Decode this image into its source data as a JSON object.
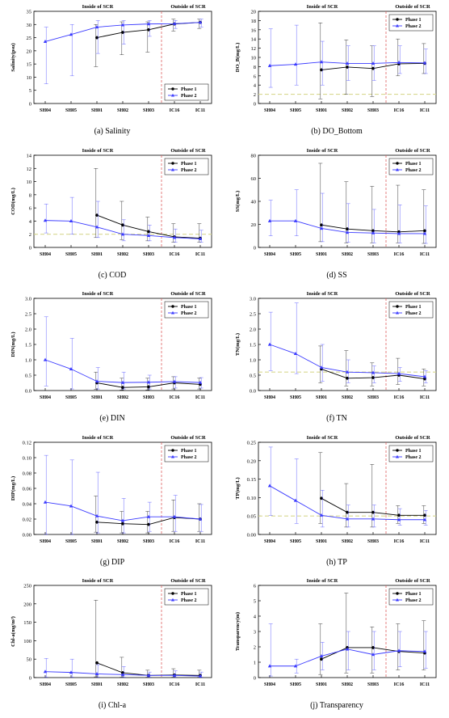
{
  "figure": {
    "stations": [
      "SH04",
      "SH05",
      "SH01",
      "SH02",
      "SH03",
      "IC16",
      "IC11"
    ],
    "region_labels": {
      "inside": "Inside of SCR",
      "outside": "Outside of SCR"
    },
    "series_names": [
      "Phase 1",
      "Phase 2"
    ],
    "colors": {
      "phase1": "#000000",
      "phase2": "#3a3aff",
      "boundary": "#e06060",
      "standard": "#d8d890"
    }
  },
  "chart_data": [
    {
      "id": "a",
      "type": "line",
      "caption": "(a)  Salinity",
      "ylabel": "Salinity(psu)",
      "ylim": [
        0,
        35
      ],
      "yticks": [
        "0",
        "5",
        "10",
        "15",
        "20",
        "25",
        "30",
        "35"
      ],
      "standard": null,
      "series": [
        {
          "name": "Phase 1",
          "values": [
            null,
            null,
            25.0,
            27.0,
            28.0,
            30.2,
            30.8
          ],
          "err_low": [
            null,
            null,
            14.0,
            18.5,
            19.5,
            27.5,
            28.5
          ],
          "err_high": [
            null,
            null,
            30.0,
            31.0,
            31.0,
            32.0,
            32.0
          ]
        },
        {
          "name": "Phase 2",
          "values": [
            23.5,
            26.2,
            29.0,
            29.8,
            30.2,
            30.3,
            30.8
          ],
          "err_low": [
            7.5,
            10.5,
            19.0,
            22.5,
            25.5,
            28.5,
            29.0
          ],
          "err_high": [
            29.0,
            30.0,
            31.5,
            31.5,
            31.5,
            31.5,
            32.0
          ]
        }
      ],
      "legend": "bottom-right"
    },
    {
      "id": "b",
      "type": "line",
      "caption": "(b)  DO_Bottom",
      "ylabel": "DO_B(mg/L)",
      "ylim": [
        0,
        20
      ],
      "yticks": [
        "0",
        "2",
        "4",
        "6",
        "8",
        "10",
        "12",
        "14",
        "16",
        "18",
        "20"
      ],
      "standard": 2,
      "series": [
        {
          "name": "Phase 1",
          "values": [
            null,
            null,
            7.3,
            7.9,
            7.6,
            8.6,
            8.7
          ],
          "err_low": [
            null,
            null,
            1.0,
            2.0,
            1.5,
            6.0,
            6.5
          ],
          "err_high": [
            null,
            null,
            17.5,
            13.8,
            12.5,
            14.0,
            13.0
          ]
        },
        {
          "name": "Phase 2",
          "values": [
            8.2,
            8.5,
            9.0,
            8.7,
            8.7,
            8.9,
            8.8
          ],
          "err_low": [
            3.5,
            4.0,
            4.0,
            5.0,
            5.0,
            6.5,
            6.5
          ],
          "err_high": [
            16.2,
            17.0,
            13.5,
            12.5,
            12.5,
            12.5,
            11.8
          ]
        }
      ],
      "legend": "top-right"
    },
    {
      "id": "c",
      "type": "line",
      "caption": "(c)  COD",
      "ylabel": "COD(mg/L)",
      "ylim": [
        0,
        14
      ],
      "yticks": [
        "0",
        "2",
        "4",
        "6",
        "8",
        "10",
        "12",
        "14"
      ],
      "standard": 2,
      "series": [
        {
          "name": "Phase 1",
          "values": [
            null,
            null,
            4.9,
            3.4,
            2.4,
            1.6,
            1.4
          ],
          "err_low": [
            null,
            null,
            1.5,
            1.2,
            1.0,
            0.8,
            0.8
          ],
          "err_high": [
            null,
            null,
            12.0,
            7.0,
            4.6,
            3.6,
            3.6
          ]
        },
        {
          "name": "Phase 2",
          "values": [
            4.1,
            4.0,
            3.1,
            2.0,
            1.8,
            1.5,
            1.3
          ],
          "err_low": [
            2.2,
            2.0,
            1.5,
            1.0,
            1.0,
            0.8,
            0.8
          ],
          "err_high": [
            6.6,
            7.6,
            7.0,
            4.2,
            3.4,
            2.8,
            2.6
          ]
        }
      ],
      "legend": "top-right"
    },
    {
      "id": "d",
      "type": "line",
      "caption": "(d)  SS",
      "ylabel": "SS(mg/L)",
      "ylim": [
        0,
        80
      ],
      "yticks": [
        "0",
        "20",
        "40",
        "60",
        "80"
      ],
      "standard": null,
      "series": [
        {
          "name": "Phase 1",
          "values": [
            null,
            null,
            19.5,
            16.0,
            14.5,
            13.5,
            14.5
          ],
          "err_low": [
            null,
            null,
            5.0,
            4.0,
            4.0,
            4.0,
            3.5
          ],
          "err_high": [
            null,
            null,
            73.0,
            57.0,
            53.0,
            54.0,
            50.0
          ]
        },
        {
          "name": "Phase 2",
          "values": [
            23.0,
            23.0,
            16.5,
            13.0,
            12.5,
            12.0,
            12.0
          ],
          "err_low": [
            10.0,
            10.0,
            5.0,
            4.5,
            4.0,
            4.0,
            3.5
          ],
          "err_high": [
            41.0,
            50.0,
            47.0,
            38.0,
            33.0,
            37.0,
            36.0
          ]
        }
      ],
      "legend": "top-right"
    },
    {
      "id": "e",
      "type": "line",
      "caption": "(e)  DIN",
      "ylabel": "DIN(mg/L)",
      "ylim": [
        0,
        3
      ],
      "yticks": [
        "0.0",
        "0.5",
        "1.0",
        "1.5",
        "2.0",
        "2.5",
        "3.0"
      ],
      "standard": null,
      "series": [
        {
          "name": "Phase 1",
          "values": [
            null,
            null,
            0.25,
            0.1,
            0.12,
            0.25,
            0.2
          ],
          "err_low": [
            null,
            null,
            0.04,
            0.02,
            0.02,
            0.05,
            0.05
          ],
          "err_high": [
            null,
            null,
            0.6,
            0.4,
            0.4,
            0.45,
            0.4
          ]
        },
        {
          "name": "Phase 2",
          "values": [
            1.0,
            0.7,
            0.3,
            0.26,
            0.27,
            0.29,
            0.26
          ],
          "err_low": [
            0.15,
            0.05,
            0.05,
            0.05,
            0.05,
            0.08,
            0.08
          ],
          "err_high": [
            2.4,
            1.7,
            0.75,
            0.6,
            0.5,
            0.45,
            0.42
          ]
        }
      ],
      "legend": "top-right"
    },
    {
      "id": "f",
      "type": "line",
      "caption": "(f)  TN",
      "ylabel": "TN(mg/L)",
      "ylim": [
        0,
        3
      ],
      "yticks": [
        "0.0",
        "0.5",
        "1.0",
        "1.5",
        "2.0",
        "2.5",
        "3.0"
      ],
      "standard": 0.6,
      "series": [
        {
          "name": "Phase 1",
          "values": [
            null,
            null,
            0.7,
            0.4,
            0.42,
            0.5,
            0.38
          ],
          "err_low": [
            null,
            null,
            0.25,
            0.15,
            0.15,
            0.2,
            0.15
          ],
          "err_high": [
            null,
            null,
            1.45,
            1.3,
            0.9,
            1.05,
            0.7
          ]
        },
        {
          "name": "Phase 2",
          "values": [
            1.5,
            1.2,
            0.75,
            0.6,
            0.58,
            0.55,
            0.45
          ],
          "err_low": [
            0.65,
            0.55,
            0.3,
            0.25,
            0.25,
            0.3,
            0.25
          ],
          "err_high": [
            2.55,
            2.85,
            1.5,
            1.0,
            0.8,
            0.75,
            0.65
          ]
        }
      ],
      "legend": "top-right"
    },
    {
      "id": "g",
      "type": "line",
      "caption": "(g)  DIP",
      "ylabel": "DIP(mg/L)",
      "ylim": [
        0,
        0.12
      ],
      "yticks": [
        "0.00",
        "0.02",
        "0.04",
        "0.06",
        "0.08",
        "0.10",
        "0.12"
      ],
      "standard": null,
      "series": [
        {
          "name": "Phase 1",
          "values": [
            null,
            null,
            0.016,
            0.014,
            0.013,
            0.022,
            0.02
          ],
          "err_low": [
            null,
            null,
            0.003,
            0.002,
            0.002,
            0.004,
            0.004
          ],
          "err_high": [
            null,
            null,
            0.05,
            0.03,
            0.03,
            0.045,
            0.04
          ]
        },
        {
          "name": "Phase 2",
          "values": [
            0.042,
            0.037,
            0.024,
            0.018,
            0.023,
            0.023,
            0.02
          ],
          "err_low": [
            0.0,
            0.0,
            0.002,
            0.002,
            0.004,
            0.004,
            0.004
          ],
          "err_high": [
            0.103,
            0.097,
            0.081,
            0.047,
            0.042,
            0.051,
            0.039
          ]
        }
      ],
      "legend": "top-right"
    },
    {
      "id": "h",
      "type": "line",
      "caption": "(h)  TP",
      "ylabel": "TP(mg/L)",
      "ylim": [
        0,
        0.25
      ],
      "yticks": [
        "0.00",
        "0.05",
        "0.10",
        "0.15",
        "0.20",
        "0.25"
      ],
      "standard": 0.05,
      "series": [
        {
          "name": "Phase 1",
          "values": [
            null,
            null,
            0.098,
            0.06,
            0.06,
            0.052,
            0.052
          ],
          "err_low": [
            null,
            null,
            0.03,
            0.02,
            0.02,
            0.03,
            0.03
          ],
          "err_high": [
            null,
            null,
            0.222,
            0.138,
            0.19,
            0.078,
            0.078
          ]
        },
        {
          "name": "Phase 2",
          "values": [
            0.132,
            0.092,
            0.052,
            0.042,
            0.042,
            0.04,
            0.04
          ],
          "err_low": [
            0.052,
            0.03,
            0.02,
            0.02,
            0.02,
            0.025,
            0.025
          ],
          "err_high": [
            0.237,
            0.205,
            0.12,
            0.08,
            0.08,
            0.07,
            0.065
          ]
        }
      ],
      "legend": "top-right"
    },
    {
      "id": "i",
      "type": "line",
      "caption": "(i)  Chl-a",
      "ylabel": "Chl-a(mg/m³)",
      "ylim": [
        0,
        250
      ],
      "yticks": [
        "0",
        "50",
        "100",
        "150",
        "200",
        "250"
      ],
      "standard": null,
      "series": [
        {
          "name": "Phase 1",
          "values": [
            null,
            null,
            40,
            13,
            6,
            7,
            6
          ],
          "err_low": [
            null,
            null,
            2,
            1,
            1,
            1,
            1
          ],
          "err_high": [
            null,
            null,
            210,
            55,
            20,
            24,
            20
          ]
        },
        {
          "name": "Phase 2",
          "values": [
            16,
            14,
            10,
            8,
            6,
            6,
            4
          ],
          "err_low": [
            1,
            1,
            1,
            1,
            1,
            1,
            1
          ],
          "err_high": [
            52,
            50,
            35,
            30,
            15,
            18,
            15
          ]
        }
      ],
      "legend": "top-right"
    },
    {
      "id": "j",
      "type": "line",
      "caption": "(j)  Transparency",
      "ylabel": "Transparency(m)",
      "ylim": [
        0,
        6
      ],
      "yticks": [
        "0",
        "1",
        "2",
        "3",
        "4",
        "5",
        "6"
      ],
      "standard": null,
      "series": [
        {
          "name": "Phase 1",
          "values": [
            null,
            null,
            1.2,
            1.95,
            1.95,
            1.7,
            1.6
          ],
          "err_low": [
            null,
            null,
            0.2,
            0.3,
            0.3,
            0.5,
            0.5
          ],
          "err_high": [
            null,
            null,
            3.5,
            5.5,
            3.3,
            3.5,
            3.7
          ]
        },
        {
          "name": "Phase 2",
          "values": [
            0.75,
            0.75,
            1.4,
            1.85,
            1.5,
            1.75,
            1.7
          ],
          "err_low": [
            0.1,
            0.3,
            0.5,
            0.5,
            0.5,
            0.7,
            0.6
          ],
          "err_high": [
            3.5,
            1.2,
            2.3,
            3.0,
            3.0,
            3.0,
            3.0
          ]
        }
      ],
      "legend": "top-right"
    }
  ]
}
